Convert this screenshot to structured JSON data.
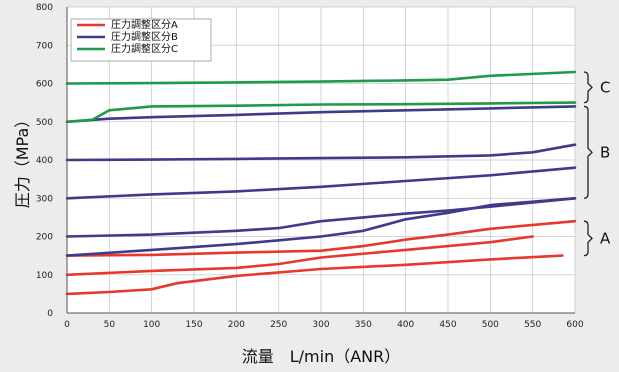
{
  "chart_data": {
    "type": "line",
    "xlabel": "流量　L/min（ANR）",
    "ylabel": "圧力（MPa）",
    "xlim": [
      0,
      600
    ],
    "ylim": [
      0,
      800
    ],
    "x_ticks": [
      0,
      50,
      100,
      150,
      200,
      250,
      300,
      350,
      400,
      450,
      500,
      550,
      600
    ],
    "y_ticks": [
      0,
      100,
      200,
      300,
      400,
      500,
      600,
      700,
      800
    ],
    "grid": true,
    "legend_position": "top-left",
    "legend": [
      {
        "label": "圧力調整区分A",
        "color": "#e8372c"
      },
      {
        "label": "圧力調整区分B",
        "color": "#3f3a8c"
      },
      {
        "label": "圧力調整区分C",
        "color": "#1f9a4a"
      }
    ],
    "series": [
      {
        "group": "A",
        "color": "#e8372c",
        "points": [
          [
            0,
            50
          ],
          [
            50,
            55
          ],
          [
            100,
            62
          ],
          [
            130,
            78
          ],
          [
            200,
            97
          ],
          [
            300,
            115
          ],
          [
            400,
            126
          ],
          [
            500,
            140
          ],
          [
            585,
            150
          ]
        ]
      },
      {
        "group": "A",
        "color": "#e8372c",
        "points": [
          [
            0,
            100
          ],
          [
            100,
            110
          ],
          [
            200,
            118
          ],
          [
            250,
            128
          ],
          [
            300,
            145
          ],
          [
            400,
            165
          ],
          [
            500,
            185
          ],
          [
            550,
            200
          ]
        ]
      },
      {
        "group": "A",
        "color": "#e8372c",
        "points": [
          [
            0,
            150
          ],
          [
            100,
            152
          ],
          [
            200,
            158
          ],
          [
            300,
            163
          ],
          [
            350,
            175
          ],
          [
            400,
            192
          ],
          [
            450,
            205
          ],
          [
            500,
            220
          ],
          [
            600,
            240
          ]
        ]
      },
      {
        "group": "B",
        "color": "#3f3a8c",
        "points": [
          [
            0,
            150
          ],
          [
            100,
            165
          ],
          [
            200,
            180
          ],
          [
            250,
            190
          ],
          [
            300,
            200
          ],
          [
            350,
            215
          ],
          [
            400,
            245
          ],
          [
            450,
            262
          ],
          [
            500,
            282
          ],
          [
            600,
            300
          ]
        ]
      },
      {
        "group": "B",
        "color": "#3f3a8c",
        "points": [
          [
            0,
            200
          ],
          [
            100,
            205
          ],
          [
            200,
            215
          ],
          [
            250,
            222
          ],
          [
            300,
            240
          ],
          [
            350,
            250
          ],
          [
            400,
            260
          ],
          [
            450,
            268
          ],
          [
            500,
            278
          ],
          [
            600,
            300
          ]
        ]
      },
      {
        "group": "B",
        "color": "#3f3a8c",
        "points": [
          [
            0,
            300
          ],
          [
            100,
            310
          ],
          [
            200,
            318
          ],
          [
            300,
            330
          ],
          [
            400,
            345
          ],
          [
            500,
            360
          ],
          [
            600,
            380
          ]
        ]
      },
      {
        "group": "B",
        "color": "#3f3a8c",
        "points": [
          [
            0,
            400
          ],
          [
            100,
            401
          ],
          [
            200,
            403
          ],
          [
            300,
            405
          ],
          [
            400,
            407
          ],
          [
            500,
            412
          ],
          [
            550,
            420
          ],
          [
            600,
            440
          ]
        ]
      },
      {
        "group": "B",
        "color": "#3f3a8c",
        "points": [
          [
            0,
            500
          ],
          [
            50,
            508
          ],
          [
            100,
            512
          ],
          [
            200,
            518
          ],
          [
            300,
            525
          ],
          [
            400,
            530
          ],
          [
            500,
            535
          ],
          [
            600,
            540
          ]
        ]
      },
      {
        "group": "C",
        "color": "#1f9a4a",
        "points": [
          [
            0,
            500
          ],
          [
            30,
            505
          ],
          [
            50,
            530
          ],
          [
            100,
            540
          ],
          [
            200,
            542
          ],
          [
            300,
            545
          ],
          [
            400,
            546
          ],
          [
            500,
            548
          ],
          [
            600,
            550
          ]
        ]
      },
      {
        "group": "C",
        "color": "#1f9a4a",
        "points": [
          [
            0,
            600
          ],
          [
            100,
            601
          ],
          [
            200,
            603
          ],
          [
            300,
            605
          ],
          [
            400,
            608
          ],
          [
            450,
            610
          ],
          [
            500,
            620
          ],
          [
            600,
            630
          ]
        ]
      }
    ],
    "brackets": [
      {
        "label": "C",
        "from": 550,
        "to": 630
      },
      {
        "label": "B",
        "from": 300,
        "to": 540
      },
      {
        "label": "A",
        "from": 150,
        "to": 240
      }
    ]
  }
}
